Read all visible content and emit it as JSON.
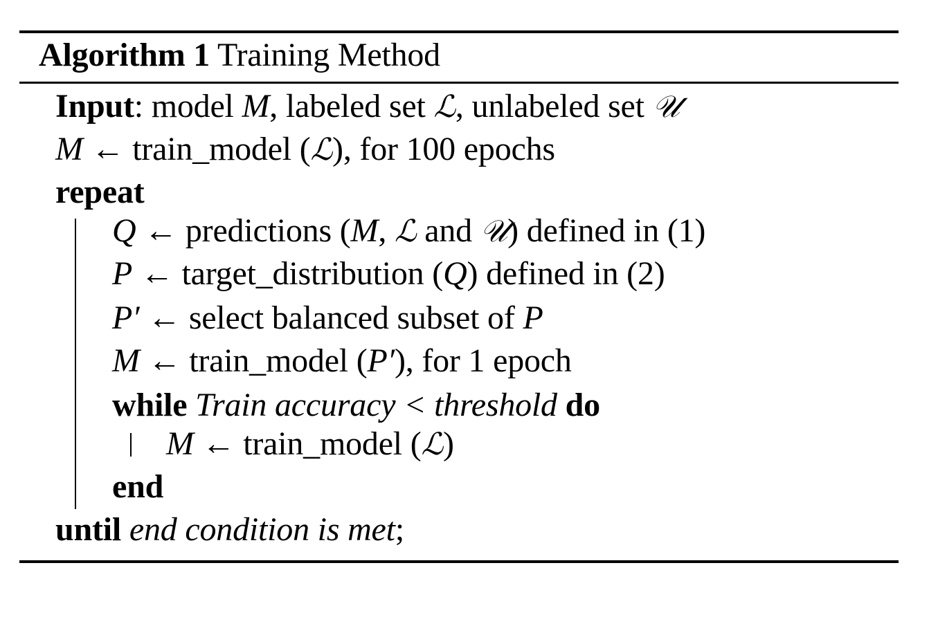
{
  "caption": {
    "label": "Algorithm 1",
    "title": "Training Method"
  },
  "lines": {
    "input": {
      "keyword": "Input",
      "t1": ": model ",
      "m": "M",
      "t2": ", labeled set ",
      "L": "ℒ",
      "t3": ", unlabeled set ",
      "U": "𝒰"
    },
    "init": {
      "m": "M",
      "t1": " ← train_model (",
      "L": "ℒ",
      "t2": "), for 100 epochs"
    },
    "repeat": {
      "keyword": "repeat"
    },
    "q": {
      "q": "Q",
      "t1": " ← predictions (",
      "m": "M",
      "t2": ", ",
      "L": "ℒ",
      "t3": " and ",
      "U": "𝒰",
      "t4": ") defined in (1)"
    },
    "p": {
      "p": "P",
      "t1": " ← target_distribution (",
      "q": "Q",
      "t2": ") defined in (2)"
    },
    "pprime": {
      "pp": "P′",
      "t1": " ← select balanced subset of ",
      "p": "P"
    },
    "mtrain": {
      "m": "M",
      "t1": " ← train_model (",
      "pp": "P′",
      "t2": "), for 1 epoch"
    },
    "while": {
      "keyword": "while",
      "cond": " Train accuracy < threshold ",
      "do": "do"
    },
    "inner": {
      "m": "M",
      "t1": " ← train_model (",
      "L": "ℒ",
      "t2": ")"
    },
    "end": {
      "keyword": "end"
    },
    "until": {
      "keyword": "until",
      "cond": " end condition is met",
      "t1": ";"
    }
  }
}
